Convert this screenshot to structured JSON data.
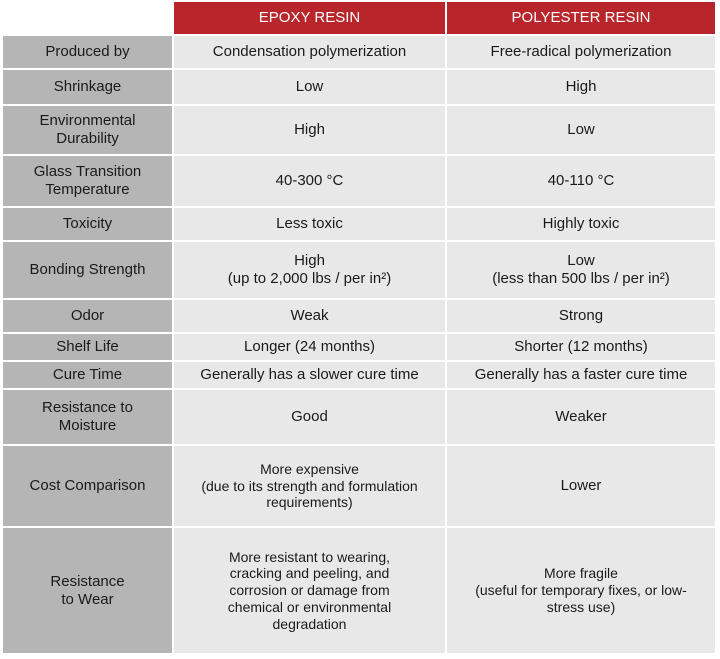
{
  "table": {
    "columns": [
      "EPOXY RESIN",
      "POLYESTER RESIN"
    ],
    "rows": [
      [
        "Produced by",
        "Condensation polymerization",
        "Free-radical polymerization"
      ],
      [
        "Shrinkage",
        "Low",
        "High"
      ],
      [
        "Environmental\nDurability",
        "High",
        "Low"
      ],
      [
        "Glass Transition\nTemperature",
        "40-300 °C",
        "40-110 °C"
      ],
      [
        "Toxicity",
        "Less toxic",
        "Highly toxic"
      ],
      [
        "Bonding Strength",
        "High\n(up to 2,000 lbs / per in²)",
        "Low\n(less than 500 lbs / per in²)"
      ],
      [
        "Odor",
        "Weak",
        "Strong"
      ],
      [
        "Shelf Life",
        "Longer (24 months)",
        "Shorter (12 months)"
      ],
      [
        "Cure Time",
        "Generally has a slower cure time",
        "Generally has a faster cure time"
      ],
      [
        "Resistance to\nMoisture",
        "Good",
        "Weaker"
      ],
      [
        "Cost Comparison",
        "More expensive\n(due to its strength and formulation\nrequirements)",
        "Lower"
      ],
      [
        "Resistance\nto Wear",
        "More resistant to wearing,\ncracking and peeling, and\ncorrosion or damage from\nchemical or environmental\ndegradation",
        "More fragile\n(useful for temporary fixes, or low-\nstress use)"
      ]
    ]
  }
}
